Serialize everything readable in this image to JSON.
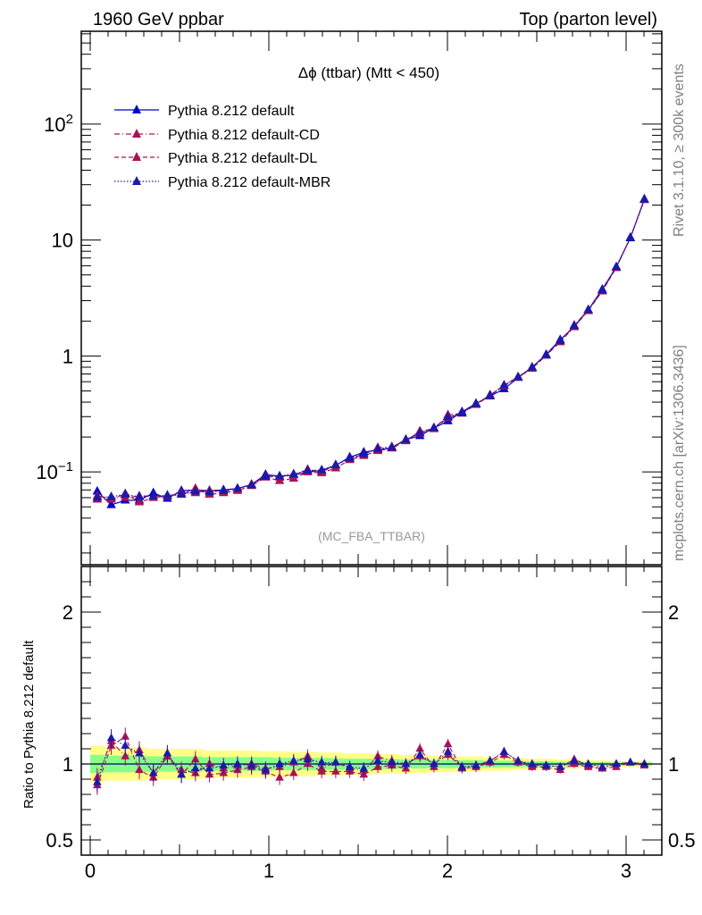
{
  "header": {
    "left": "1960 GeV ppbar",
    "right": "Top (parton level)"
  },
  "side_labels": {
    "rivet": "Rivet 3.1.10, ≥ 300k events",
    "mcplots": "mcplots.cern.ch [arXiv:1306.3436]"
  },
  "chart_data": [
    {
      "type": "line",
      "title": "Δϕ (ttbar) (Mtt < 450)",
      "watermark": "(MC_FBA_TTBAR)",
      "yscale": "log",
      "ylim": [
        0.01585,
        631
      ],
      "xlim": [
        -0.05,
        3.2
      ],
      "y_ticks": [
        {
          "v": 0.1,
          "base": "10",
          "exp": "−1"
        },
        {
          "v": 1,
          "label": "1"
        },
        {
          "v": 10,
          "label": "10"
        },
        {
          "v": 100,
          "base": "10",
          "exp": "2"
        }
      ],
      "legend_position": "top-left",
      "x": [
        0.0393,
        0.1178,
        0.1963,
        0.2749,
        0.3534,
        0.432,
        0.5105,
        0.589,
        0.6676,
        0.7461,
        0.8247,
        0.9032,
        0.9817,
        1.0603,
        1.1388,
        1.2174,
        1.2959,
        1.3744,
        1.453,
        1.5315,
        1.6101,
        1.6886,
        1.7671,
        1.8457,
        1.9242,
        2.0028,
        2.0813,
        2.1598,
        2.2384,
        2.3169,
        2.3955,
        2.474,
        2.5525,
        2.6311,
        2.7096,
        2.7882,
        2.8667,
        2.9452,
        3.0238,
        3.1023
      ],
      "series": [
        {
          "name": "Pythia 8.212 default",
          "color": "#0000cc",
          "marker": "triangle",
          "line": "solid",
          "values": [
            0.068,
            0.052,
            0.057,
            0.057,
            0.066,
            0.059,
            0.069,
            0.07,
            0.069,
            0.07,
            0.072,
            0.078,
            0.095,
            0.092,
            0.094,
            0.1,
            0.103,
            0.114,
            0.134,
            0.148,
            0.155,
            0.161,
            0.19,
            0.205,
            0.24,
            0.275,
            0.33,
            0.39,
            0.45,
            0.52,
            0.65,
            0.8,
            1.03,
            1.38,
            1.78,
            2.5,
            3.75,
            5.85,
            10.4,
            22.5
          ]
        },
        {
          "name": "Pythia 8.212 default-CD",
          "color": "#aa1155",
          "marker": "triangle",
          "line": "dashdot",
          "values": [
            0.062,
            0.06,
            0.06,
            0.062,
            0.062,
            0.062,
            0.066,
            0.066,
            0.069,
            0.068,
            0.071,
            0.078,
            0.092,
            0.09,
            0.095,
            0.105,
            0.1,
            0.115,
            0.13,
            0.142,
            0.162,
            0.165,
            0.19,
            0.215,
            0.24,
            0.292,
            0.322,
            0.385,
            0.46,
            0.56,
            0.66,
            0.79,
            1.02,
            1.35,
            1.84,
            2.48,
            3.65,
            5.85,
            10.5,
            22.5
          ]
        },
        {
          "name": "Pythia 8.212 default-DL",
          "color": "#aa1155",
          "marker": "triangle",
          "line": "dashed",
          "values": [
            0.058,
            0.058,
            0.065,
            0.055,
            0.06,
            0.062,
            0.064,
            0.072,
            0.064,
            0.066,
            0.069,
            0.076,
            0.09,
            0.084,
            0.088,
            0.1,
            0.098,
            0.108,
            0.127,
            0.138,
            0.152,
            0.16,
            0.185,
            0.225,
            0.235,
            0.31,
            0.32,
            0.38,
            0.455,
            0.55,
            0.655,
            0.78,
            1.01,
            1.32,
            1.78,
            2.45,
            3.62,
            5.75,
            10.5,
            22.2
          ]
        },
        {
          "name": "Pythia 8.212 default-MBR",
          "color": "#1a1aaa",
          "marker": "triangle",
          "line": "dotted",
          "values": [
            0.06,
            0.061,
            0.064,
            0.061,
            0.062,
            0.063,
            0.064,
            0.068,
            0.067,
            0.069,
            0.072,
            0.077,
            0.091,
            0.092,
            0.096,
            0.103,
            0.104,
            0.115,
            0.131,
            0.143,
            0.158,
            0.163,
            0.19,
            0.218,
            0.24,
            0.298,
            0.322,
            0.386,
            0.46,
            0.56,
            0.66,
            0.8,
            1.02,
            1.35,
            1.82,
            2.5,
            3.68,
            5.85,
            10.5,
            22.4
          ]
        }
      ]
    },
    {
      "type": "line",
      "ylabel": "Ratio to Pythia 8.212 default",
      "ylim": [
        0.4,
        2.3
      ],
      "y_ticks": [
        0.5,
        1,
        2
      ],
      "x_ticks": [
        0,
        1,
        2,
        3
      ],
      "band_outer_color": "#ffff88",
      "band_inner_color": "#88ff88",
      "band_outer_half": [
        0.12,
        0.11,
        0.11,
        0.11,
        0.1,
        0.1,
        0.1,
        0.1,
        0.09,
        0.09,
        0.09,
        0.09,
        0.085,
        0.085,
        0.08,
        0.08,
        0.075,
        0.075,
        0.07,
        0.07,
        0.065,
        0.065,
        0.06,
        0.06,
        0.055,
        0.055,
        0.05,
        0.05,
        0.045,
        0.045,
        0.04,
        0.035,
        0.035,
        0.03,
        0.03,
        0.025,
        0.025,
        0.02,
        0.02,
        0.02
      ],
      "band_inner_half": [
        0.06,
        0.055,
        0.055,
        0.055,
        0.05,
        0.05,
        0.05,
        0.05,
        0.045,
        0.045,
        0.045,
        0.045,
        0.045,
        0.04,
        0.04,
        0.04,
        0.04,
        0.038,
        0.035,
        0.035,
        0.033,
        0.033,
        0.03,
        0.03,
        0.028,
        0.028,
        0.025,
        0.025,
        0.022,
        0.022,
        0.02,
        0.018,
        0.018,
        0.015,
        0.015,
        0.012,
        0.012,
        0.01,
        0.01,
        0.01
      ],
      "series": [
        {
          "name": "Pythia 8.212 default-CD",
          "color": "#aa1155",
          "line": "dashdot",
          "values": [
            0.91,
            1.15,
            1.05,
            1.09,
            0.94,
            1.05,
            0.96,
            0.94,
            1.0,
            0.97,
            0.99,
            1.0,
            0.97,
            0.98,
            1.01,
            1.05,
            0.97,
            1.01,
            0.97,
            0.96,
            1.05,
            1.02,
            1.0,
            1.05,
            1.0,
            1.06,
            0.98,
            0.99,
            1.02,
            1.08,
            1.02,
            0.99,
            0.99,
            0.98,
            1.03,
            0.99,
            0.97,
            1.0,
            1.01,
            1.0
          ]
        },
        {
          "name": "Pythia 8.212 default-DL",
          "color": "#aa1155",
          "line": "dashed",
          "values": [
            0.86,
            1.12,
            1.18,
            0.96,
            0.91,
            1.05,
            0.93,
            1.03,
            0.93,
            0.94,
            0.96,
            0.98,
            0.95,
            0.91,
            0.94,
            1.0,
            0.95,
            0.95,
            0.95,
            0.93,
            0.98,
            0.99,
            0.97,
            1.1,
            0.98,
            1.13,
            0.97,
            0.98,
            1.01,
            1.06,
            1.01,
            0.98,
            0.98,
            0.96,
            1.0,
            0.98,
            0.97,
            0.98,
            1.01,
            0.99
          ]
        },
        {
          "name": "Pythia 8.212 default-MBR",
          "color": "#1a1aaa",
          "line": "dotted",
          "values": [
            0.88,
            1.17,
            1.12,
            1.07,
            0.94,
            1.07,
            0.93,
            0.97,
            0.97,
            0.99,
            1.0,
            0.99,
            0.96,
            1.0,
            1.02,
            1.03,
            1.01,
            1.01,
            0.98,
            0.97,
            1.02,
            1.01,
            1.0,
            1.06,
            1.0,
            1.08,
            0.98,
            0.99,
            1.02,
            1.08,
            1.02,
            1.0,
            0.99,
            0.98,
            1.02,
            1.0,
            0.98,
            1.0,
            1.01,
            1.0
          ]
        }
      ]
    }
  ]
}
